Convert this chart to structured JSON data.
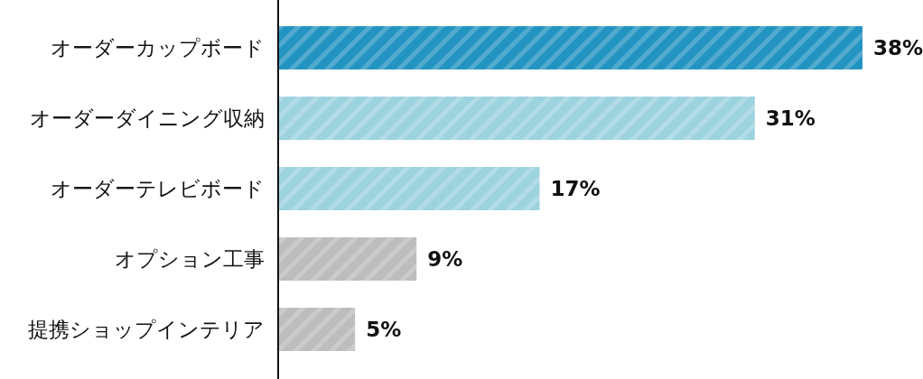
{
  "chart_data": {
    "type": "bar",
    "orientation": "horizontal",
    "categories": [
      "オーダーカップボード",
      "オーダーダイニング収納",
      "オーダーテレビボード",
      "オプション工事",
      "提携ショップインテリア"
    ],
    "values": [
      38,
      31,
      17,
      9,
      5
    ],
    "colors": [
      "#2394c2",
      "#9dd2df",
      "#9dd2df",
      "#bdbdbd",
      "#bdbdbd"
    ],
    "value_labels": [
      "38%",
      "31%",
      "17%",
      "9%",
      "5%"
    ]
  }
}
